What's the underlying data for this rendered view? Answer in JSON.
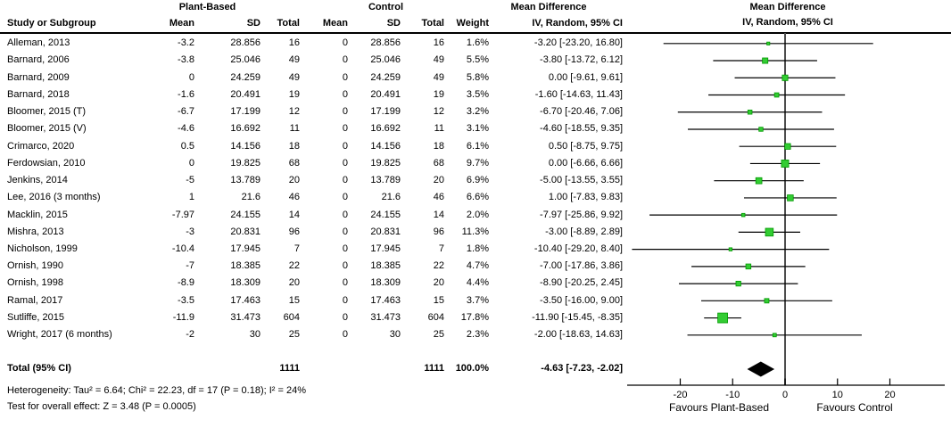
{
  "header": {
    "study_col": "Study or Subgroup",
    "group_experimental": "Plant-Based",
    "group_control": "Control",
    "mean": "Mean",
    "sd": "SD",
    "total": "Total",
    "weight": "Weight",
    "md_title": "Mean Difference",
    "md_subtitle": "IV, Random, 95% CI"
  },
  "total_row": {
    "label": "Total (95% CI)",
    "total_experimental": "1111",
    "total_control": "1111",
    "weight": "100.0%",
    "md_text": "-4.63 [-7.23, -2.02]"
  },
  "footer": {
    "heterogeneity": "Heterogeneity: Tau² = 6.64; Chi² = 22.23, df = 17 (P = 0.18); I² = 24%",
    "overall_effect": "Test for overall effect: Z = 3.48 (P = 0.0005)"
  },
  "colors": {
    "marker": "#33CC33",
    "marker_border": "#009900",
    "diamond": "#000000",
    "ci_line": "#000000",
    "zero_line": "#4D4D4D",
    "axis": "#000000",
    "text": "#000000",
    "background": "#FFFFFF"
  },
  "chart_data": {
    "type": "scatter",
    "subtype": "forest-plot",
    "title": "Mean Difference",
    "subtitle": "IV, Random, 95% CI",
    "x_axis": {
      "ticks": [
        -20,
        -10,
        0,
        10,
        20
      ],
      "min": -30,
      "max": 30,
      "label_left": "Favours Plant-Based",
      "label_right": "Favours Control"
    },
    "studies": [
      {
        "name": "Alleman, 2013",
        "mean_pb": "-3.2",
        "sd_pb": "28.856",
        "total_pb": "16",
        "mean_c": "0",
        "sd_c": "28.856",
        "total_c": "16",
        "weight": "1.6%",
        "weight_pct": 1.6,
        "md_text": "-3.20 [-23.20, 16.80]",
        "md": -3.2,
        "ci_low": -23.2,
        "ci_high": 16.8
      },
      {
        "name": "Barnard, 2006",
        "mean_pb": "-3.8",
        "sd_pb": "25.046",
        "total_pb": "49",
        "mean_c": "0",
        "sd_c": "25.046",
        "total_c": "49",
        "weight": "5.5%",
        "weight_pct": 5.5,
        "md_text": "-3.80 [-13.72, 6.12]",
        "md": -3.8,
        "ci_low": -13.72,
        "ci_high": 6.12
      },
      {
        "name": "Barnard, 2009",
        "mean_pb": "0",
        "sd_pb": "24.259",
        "total_pb": "49",
        "mean_c": "0",
        "sd_c": "24.259",
        "total_c": "49",
        "weight": "5.8%",
        "weight_pct": 5.8,
        "md_text": "0.00 [-9.61, 9.61]",
        "md": 0,
        "ci_low": -9.61,
        "ci_high": 9.61
      },
      {
        "name": "Barnard, 2018",
        "mean_pb": "-1.6",
        "sd_pb": "20.491",
        "total_pb": "19",
        "mean_c": "0",
        "sd_c": "20.491",
        "total_c": "19",
        "weight": "3.5%",
        "weight_pct": 3.5,
        "md_text": "-1.60 [-14.63, 11.43]",
        "md": -1.6,
        "ci_low": -14.63,
        "ci_high": 11.43
      },
      {
        "name": "Bloomer, 2015 (T)",
        "mean_pb": "-6.7",
        "sd_pb": "17.199",
        "total_pb": "12",
        "mean_c": "0",
        "sd_c": "17.199",
        "total_c": "12",
        "weight": "3.2%",
        "weight_pct": 3.2,
        "md_text": "-6.70 [-20.46, 7.06]",
        "md": -6.7,
        "ci_low": -20.46,
        "ci_high": 7.06
      },
      {
        "name": "Bloomer, 2015 (V)",
        "mean_pb": "-4.6",
        "sd_pb": "16.692",
        "total_pb": "11",
        "mean_c": "0",
        "sd_c": "16.692",
        "total_c": "11",
        "weight": "3.1%",
        "weight_pct": 3.1,
        "md_text": "-4.60 [-18.55, 9.35]",
        "md": -4.6,
        "ci_low": -18.55,
        "ci_high": 9.35
      },
      {
        "name": "Crimarco, 2020",
        "mean_pb": "0.5",
        "sd_pb": "14.156",
        "total_pb": "18",
        "mean_c": "0",
        "sd_c": "14.156",
        "total_c": "18",
        "weight": "6.1%",
        "weight_pct": 6.1,
        "md_text": "0.50 [-8.75, 9.75]",
        "md": 0.5,
        "ci_low": -8.75,
        "ci_high": 9.75
      },
      {
        "name": "Ferdowsian, 2010",
        "mean_pb": "0",
        "sd_pb": "19.825",
        "total_pb": "68",
        "mean_c": "0",
        "sd_c": "19.825",
        "total_c": "68",
        "weight": "9.7%",
        "weight_pct": 9.7,
        "md_text": "0.00 [-6.66, 6.66]",
        "md": 0,
        "ci_low": -6.66,
        "ci_high": 6.66
      },
      {
        "name": "Jenkins, 2014",
        "mean_pb": "-5",
        "sd_pb": "13.789",
        "total_pb": "20",
        "mean_c": "0",
        "sd_c": "13.789",
        "total_c": "20",
        "weight": "6.9%",
        "weight_pct": 6.9,
        "md_text": "-5.00 [-13.55, 3.55]",
        "md": -5,
        "ci_low": -13.55,
        "ci_high": 3.55
      },
      {
        "name": "Lee, 2016 (3 months)",
        "mean_pb": "1",
        "sd_pb": "21.6",
        "total_pb": "46",
        "mean_c": "0",
        "sd_c": "21.6",
        "total_c": "46",
        "weight": "6.6%",
        "weight_pct": 6.6,
        "md_text": "1.00 [-7.83, 9.83]",
        "md": 1,
        "ci_low": -7.83,
        "ci_high": 9.83
      },
      {
        "name": "Macklin, 2015",
        "mean_pb": "-7.97",
        "sd_pb": "24.155",
        "total_pb": "14",
        "mean_c": "0",
        "sd_c": "24.155",
        "total_c": "14",
        "weight": "2.0%",
        "weight_pct": 2.0,
        "md_text": "-7.97 [-25.86, 9.92]",
        "md": -7.97,
        "ci_low": -25.86,
        "ci_high": 9.92
      },
      {
        "name": "Mishra, 2013",
        "mean_pb": "-3",
        "sd_pb": "20.831",
        "total_pb": "96",
        "mean_c": "0",
        "sd_c": "20.831",
        "total_c": "96",
        "weight": "11.3%",
        "weight_pct": 11.3,
        "md_text": "-3.00 [-8.89, 2.89]",
        "md": -3,
        "ci_low": -8.89,
        "ci_high": 2.89
      },
      {
        "name": "Nicholson, 1999",
        "mean_pb": "-10.4",
        "sd_pb": "17.945",
        "total_pb": "7",
        "mean_c": "0",
        "sd_c": "17.945",
        "total_c": "7",
        "weight": "1.8%",
        "weight_pct": 1.8,
        "md_text": "-10.40 [-29.20, 8.40]",
        "md": -10.4,
        "ci_low": -29.2,
        "ci_high": 8.4
      },
      {
        "name": "Ornish, 1990",
        "mean_pb": "-7",
        "sd_pb": "18.385",
        "total_pb": "22",
        "mean_c": "0",
        "sd_c": "18.385",
        "total_c": "22",
        "weight": "4.7%",
        "weight_pct": 4.7,
        "md_text": "-7.00 [-17.86, 3.86]",
        "md": -7,
        "ci_low": -17.86,
        "ci_high": 3.86
      },
      {
        "name": "Ornish, 1998",
        "mean_pb": "-8.9",
        "sd_pb": "18.309",
        "total_pb": "20",
        "mean_c": "0",
        "sd_c": "18.309",
        "total_c": "20",
        "weight": "4.4%",
        "weight_pct": 4.4,
        "md_text": "-8.90 [-20.25, 2.45]",
        "md": -8.9,
        "ci_low": -20.25,
        "ci_high": 2.45
      },
      {
        "name": "Ramal, 2017",
        "mean_pb": "-3.5",
        "sd_pb": "17.463",
        "total_pb": "15",
        "mean_c": "0",
        "sd_c": "17.463",
        "total_c": "15",
        "weight": "3.7%",
        "weight_pct": 3.7,
        "md_text": "-3.50 [-16.00, 9.00]",
        "md": -3.5,
        "ci_low": -16,
        "ci_high": 9
      },
      {
        "name": "Sutliffe, 2015",
        "mean_pb": "-11.9",
        "sd_pb": "31.473",
        "total_pb": "604",
        "mean_c": "0",
        "sd_c": "31.473",
        "total_c": "604",
        "weight": "17.8%",
        "weight_pct": 17.8,
        "md_text": "-11.90 [-15.45, -8.35]",
        "md": -11.9,
        "ci_low": -15.45,
        "ci_high": -8.35
      },
      {
        "name": "Wright, 2017 (6 months)",
        "mean_pb": "-2",
        "sd_pb": "30",
        "total_pb": "25",
        "mean_c": "0",
        "sd_c": "30",
        "total_c": "25",
        "weight": "2.3%",
        "weight_pct": 2.3,
        "md_text": "-2.00 [-18.63, 14.63]",
        "md": -2,
        "ci_low": -18.63,
        "ci_high": 14.63
      }
    ],
    "pooled": {
      "md": -4.63,
      "ci_low": -7.23,
      "ci_high": -2.02
    }
  }
}
